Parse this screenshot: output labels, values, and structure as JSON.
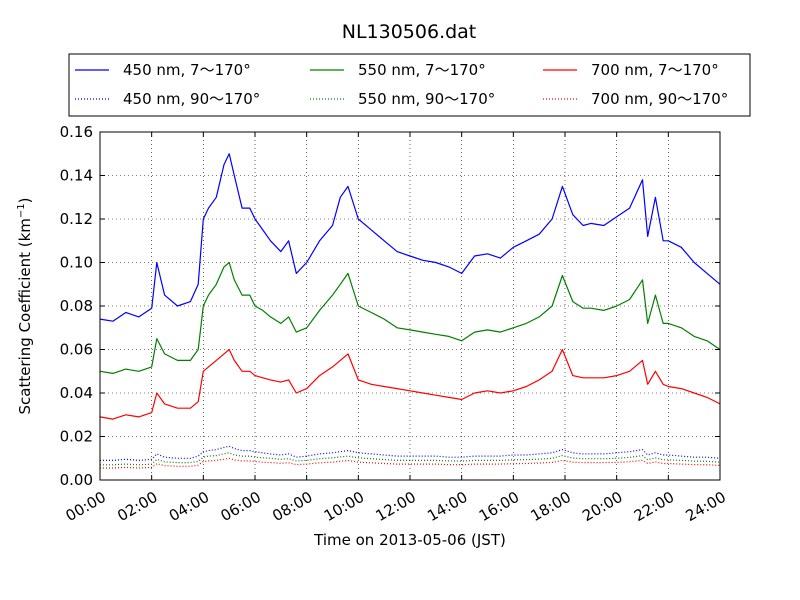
{
  "chart_data": {
    "type": "line",
    "title": "NL130506.dat",
    "xlabel": "Time on 2013-05-06 (JST)",
    "ylabel_main": "Scattering Coefficient (km",
    "ylabel_sup": "−1",
    "ylabel_end": ")",
    "xlim_hours": [
      0,
      24
    ],
    "ylim": [
      0,
      0.16
    ],
    "grid": true,
    "legend_position": "top",
    "x_ticks": [
      {
        "hour": 0,
        "label": "00:00"
      },
      {
        "hour": 2,
        "label": "02:00"
      },
      {
        "hour": 4,
        "label": "04:00"
      },
      {
        "hour": 6,
        "label": "06:00"
      },
      {
        "hour": 8,
        "label": "08:00"
      },
      {
        "hour": 10,
        "label": "10:00"
      },
      {
        "hour": 12,
        "label": "12:00"
      },
      {
        "hour": 14,
        "label": "14:00"
      },
      {
        "hour": 16,
        "label": "16:00"
      },
      {
        "hour": 18,
        "label": "18:00"
      },
      {
        "hour": 20,
        "label": "20:00"
      },
      {
        "hour": 22,
        "label": "22:00"
      },
      {
        "hour": 24,
        "label": "24:00"
      }
    ],
    "y_ticks": [
      {
        "value": 0.0,
        "label": "0.00"
      },
      {
        "value": 0.02,
        "label": "0.02"
      },
      {
        "value": 0.04,
        "label": "0.04"
      },
      {
        "value": 0.06,
        "label": "0.06"
      },
      {
        "value": 0.08,
        "label": "0.08"
      },
      {
        "value": 0.1,
        "label": "0.10"
      },
      {
        "value": 0.12,
        "label": "0.12"
      },
      {
        "value": 0.14,
        "label": "0.14"
      },
      {
        "value": 0.16,
        "label": "0.16"
      }
    ],
    "x_hours": [
      0,
      0.5,
      1,
      1.5,
      2,
      2.2,
      2.5,
      3,
      3.5,
      3.8,
      4,
      4.2,
      4.5,
      4.8,
      5,
      5.2,
      5.5,
      5.8,
      6,
      6.3,
      6.6,
      7,
      7.3,
      7.6,
      8,
      8.5,
      9,
      9.3,
      9.6,
      10,
      10.5,
      11,
      11.5,
      12,
      12.5,
      13,
      13.5,
      14,
      14.5,
      15,
      15.5,
      16,
      16.5,
      17,
      17.5,
      17.9,
      18.3,
      18.7,
      19,
      19.5,
      20,
      20.5,
      21,
      21.2,
      21.5,
      21.8,
      22,
      22.5,
      23,
      23.5,
      24
    ],
    "series": [
      {
        "name": "450 nm, 7～170°",
        "color": "#0000ff",
        "style": "solid",
        "values": [
          0.074,
          0.073,
          0.077,
          0.075,
          0.079,
          0.1,
          0.085,
          0.08,
          0.082,
          0.09,
          0.12,
          0.125,
          0.13,
          0.145,
          0.15,
          0.14,
          0.125,
          0.125,
          0.12,
          0.115,
          0.11,
          0.105,
          0.11,
          0.095,
          0.1,
          0.11,
          0.117,
          0.13,
          0.135,
          0.12,
          0.115,
          0.11,
          0.105,
          0.103,
          0.101,
          0.1,
          0.098,
          0.095,
          0.103,
          0.104,
          0.102,
          0.107,
          0.11,
          0.113,
          0.12,
          0.135,
          0.122,
          0.117,
          0.118,
          0.117,
          0.121,
          0.125,
          0.138,
          0.112,
          0.13,
          0.11,
          0.11,
          0.107,
          0.1,
          0.095,
          0.09
        ]
      },
      {
        "name": "550 nm, 7～170°",
        "color": "#008000",
        "style": "solid",
        "values": [
          0.05,
          0.049,
          0.051,
          0.05,
          0.052,
          0.065,
          0.058,
          0.055,
          0.055,
          0.06,
          0.08,
          0.085,
          0.09,
          0.098,
          0.1,
          0.092,
          0.085,
          0.085,
          0.08,
          0.078,
          0.075,
          0.072,
          0.075,
          0.068,
          0.07,
          0.078,
          0.085,
          0.09,
          0.095,
          0.08,
          0.077,
          0.074,
          0.07,
          0.069,
          0.068,
          0.067,
          0.066,
          0.064,
          0.068,
          0.069,
          0.068,
          0.07,
          0.072,
          0.075,
          0.08,
          0.094,
          0.082,
          0.079,
          0.079,
          0.078,
          0.08,
          0.083,
          0.092,
          0.072,
          0.085,
          0.072,
          0.072,
          0.07,
          0.066,
          0.064,
          0.06
        ]
      },
      {
        "name": "700 nm, 7～170°",
        "color": "#ff0000",
        "style": "solid",
        "values": [
          0.029,
          0.028,
          0.03,
          0.029,
          0.031,
          0.04,
          0.035,
          0.033,
          0.033,
          0.036,
          0.05,
          0.052,
          0.055,
          0.058,
          0.06,
          0.055,
          0.05,
          0.05,
          0.048,
          0.047,
          0.046,
          0.045,
          0.046,
          0.04,
          0.042,
          0.048,
          0.052,
          0.055,
          0.058,
          0.046,
          0.044,
          0.043,
          0.042,
          0.041,
          0.04,
          0.039,
          0.038,
          0.037,
          0.04,
          0.041,
          0.04,
          0.041,
          0.043,
          0.046,
          0.05,
          0.06,
          0.048,
          0.047,
          0.047,
          0.047,
          0.048,
          0.05,
          0.055,
          0.044,
          0.05,
          0.044,
          0.043,
          0.042,
          0.04,
          0.038,
          0.035
        ]
      },
      {
        "name": "450 nm, 90～170°",
        "color": "#0000ff",
        "style": "dotted",
        "values": [
          0.009,
          0.009,
          0.0095,
          0.009,
          0.0095,
          0.012,
          0.0105,
          0.01,
          0.01,
          0.011,
          0.013,
          0.0135,
          0.014,
          0.015,
          0.0155,
          0.0145,
          0.0135,
          0.0135,
          0.013,
          0.0125,
          0.012,
          0.0115,
          0.012,
          0.0105,
          0.011,
          0.012,
          0.0125,
          0.013,
          0.0135,
          0.0125,
          0.012,
          0.0115,
          0.011,
          0.011,
          0.011,
          0.011,
          0.0105,
          0.0105,
          0.011,
          0.011,
          0.011,
          0.0115,
          0.0115,
          0.012,
          0.0125,
          0.014,
          0.0125,
          0.012,
          0.012,
          0.012,
          0.0125,
          0.013,
          0.014,
          0.0115,
          0.0125,
          0.0115,
          0.0115,
          0.011,
          0.0105,
          0.0105,
          0.01
        ]
      },
      {
        "name": "550 nm, 90～170°",
        "color": "#008000",
        "style": "dotted",
        "values": [
          0.007,
          0.007,
          0.0073,
          0.007,
          0.0073,
          0.0095,
          0.0083,
          0.008,
          0.008,
          0.0085,
          0.0105,
          0.011,
          0.0112,
          0.012,
          0.0125,
          0.0115,
          0.011,
          0.011,
          0.0105,
          0.0102,
          0.01,
          0.0095,
          0.0098,
          0.0088,
          0.009,
          0.0098,
          0.0102,
          0.0106,
          0.011,
          0.0102,
          0.0098,
          0.0094,
          0.009,
          0.009,
          0.009,
          0.009,
          0.0088,
          0.0087,
          0.009,
          0.009,
          0.009,
          0.0093,
          0.0094,
          0.0096,
          0.01,
          0.0112,
          0.0101,
          0.0098,
          0.0098,
          0.0098,
          0.01,
          0.0104,
          0.0112,
          0.0093,
          0.0102,
          0.0093,
          0.0093,
          0.009,
          0.0087,
          0.0086,
          0.0082
        ]
      },
      {
        "name": "700 nm, 90～170°",
        "color": "#ff0000",
        "style": "dotted",
        "values": [
          0.0055,
          0.0055,
          0.0058,
          0.0055,
          0.0058,
          0.0075,
          0.0066,
          0.0063,
          0.0063,
          0.0068,
          0.0085,
          0.0088,
          0.009,
          0.0095,
          0.01,
          0.0092,
          0.0088,
          0.0088,
          0.0085,
          0.0082,
          0.008,
          0.0077,
          0.0079,
          0.0071,
          0.0073,
          0.0079,
          0.0082,
          0.0086,
          0.009,
          0.0082,
          0.0079,
          0.0076,
          0.0073,
          0.0073,
          0.0073,
          0.0073,
          0.0071,
          0.007,
          0.0073,
          0.0073,
          0.0073,
          0.0075,
          0.0076,
          0.0078,
          0.0081,
          0.009,
          0.0082,
          0.008,
          0.008,
          0.008,
          0.0081,
          0.0084,
          0.009,
          0.0076,
          0.0083,
          0.0076,
          0.0076,
          0.0073,
          0.0071,
          0.007,
          0.0067
        ]
      }
    ]
  }
}
